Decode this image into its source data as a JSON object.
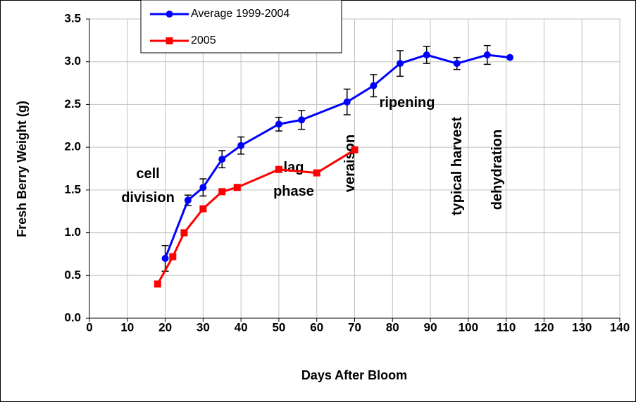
{
  "chart_data": {
    "type": "line",
    "x_label": "Days After Bloom",
    "y_label": "Fresh Berry Weight (g)",
    "xlim": [
      0,
      140
    ],
    "xticks": [
      0,
      10,
      20,
      30,
      40,
      50,
      60,
      70,
      80,
      90,
      100,
      110,
      120,
      130,
      140
    ],
    "ylim": [
      0,
      3.5
    ],
    "yticks": [
      {
        "value": 0,
        "label": "0.0"
      },
      0.5,
      {
        "value": 1,
        "label": "1.0"
      },
      1.5,
      {
        "value": 2,
        "label": "2.0"
      },
      2.5,
      {
        "value": 3,
        "label": "3.0"
      },
      3.5
    ],
    "grid": true,
    "legend": "top",
    "series": [
      {
        "name": "Average 1999-2004",
        "color": "#0000ff",
        "marker": "circle",
        "x": [
          20,
          26,
          30,
          35,
          40,
          50,
          56,
          68,
          75,
          82,
          89,
          97,
          105,
          111
        ],
        "values": [
          0.7,
          1.38,
          1.53,
          1.86,
          2.02,
          2.27,
          2.32,
          2.53,
          2.72,
          2.98,
          3.08,
          2.98,
          3.08,
          3.05
        ],
        "errors": [
          0.15,
          0.06,
          0.1,
          0.1,
          0.1,
          0.08,
          0.11,
          0.15,
          0.13,
          0.15,
          0.1,
          0.07,
          0.11,
          null
        ]
      },
      {
        "name": "2005",
        "color": "#ff0000",
        "marker": "square",
        "x": [
          18,
          22,
          25,
          30,
          35,
          39,
          50,
          60,
          70
        ],
        "values": [
          0.4,
          0.72,
          1.0,
          1.28,
          1.48,
          1.53,
          1.74,
          1.7,
          1.97
        ]
      }
    ],
    "annotations": [
      [
        "cell",
        "division"
      ],
      [
        "lag",
        "phase"
      ],
      [
        "veraison"
      ],
      [
        "ripening"
      ],
      [
        "typical harvest"
      ],
      [
        "dehydration"
      ]
    ]
  }
}
